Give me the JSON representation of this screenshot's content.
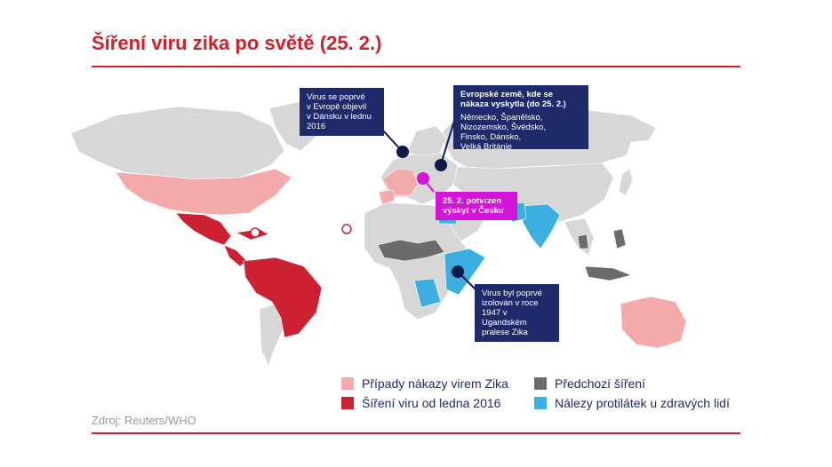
{
  "title": "Šíření viru zika po světě (25. 2.)",
  "callouts": {
    "denmark": {
      "lines": [
        "Virus se poprvé",
        "v Evropě objevil",
        "v Dánsku v lednu",
        "2016"
      ]
    },
    "europe": {
      "head_lines": [
        "Evropské země, kde se",
        "nákaza vyskytla (do 25. 2.)"
      ],
      "lines": [
        "Německo, Španělsko,",
        "Nizozemsko, Švédsko,",
        "Finsko, Dánsko,",
        "Velká Británie"
      ]
    },
    "czech": {
      "lines": [
        "25. 2. potvrzen",
        "výskyt v Česku"
      ]
    },
    "uganda": {
      "lines": [
        "Virus byl poprvé",
        "izolován v roce",
        "1947 v Ugandském",
        "pralese Zika"
      ]
    }
  },
  "legend": [
    {
      "label": "Případy nákazy virem Zika",
      "color": "#f4a9ab"
    },
    {
      "label": "Šíření viru od ledna 2016",
      "color": "#cc2131"
    },
    {
      "label": "Předchozí šíření",
      "color": "#6b6b6b"
    },
    {
      "label": "Nálezy protilátek u zdravých lidí",
      "color": "#3bb0e0"
    }
  ],
  "colors": {
    "land": "#d7d7d7",
    "accent_red": "#d0202a",
    "callout_navy": "#1f2a6b",
    "callout_pink": "#d414d8",
    "marker_navy": "#0d1a4a"
  },
  "source": "Zdroj: Reuters/WHO"
}
